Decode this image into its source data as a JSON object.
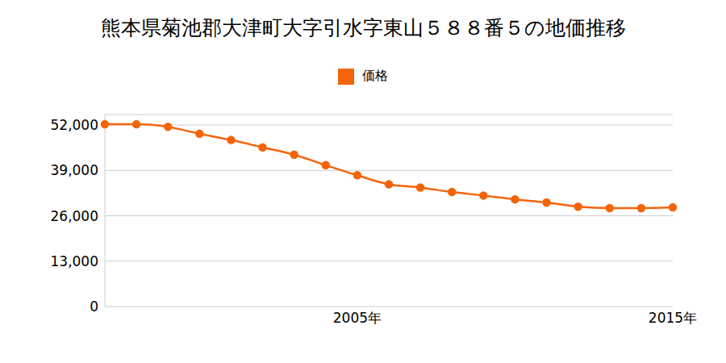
{
  "chart_data": {
    "type": "line",
    "title": "熊本県菊池郡大津町大字引水字東山５８８番５の地価推移",
    "categories": [
      null,
      null,
      null,
      null,
      null,
      null,
      null,
      null,
      "2005年",
      null,
      null,
      null,
      null,
      null,
      null,
      null,
      null,
      null,
      "2015年"
    ],
    "series": [
      {
        "name": "価格",
        "color": "#f5640a",
        "marker": "circle",
        "line_style": "solid",
        "values": [
          52200,
          52200,
          51500,
          49500,
          47700,
          45600,
          43500,
          40500,
          37600,
          35000,
          34100,
          32800,
          31800,
          30700,
          29800,
          28600,
          28200,
          28200,
          28400
        ]
      }
    ],
    "ylim": [
      0,
      55000
    ],
    "yticks": [
      0,
      {
        "value": 13000,
        "label": "13,000"
      },
      {
        "value": 26000,
        "label": "26,000"
      },
      {
        "value": 39000,
        "label": "39,000"
      },
      {
        "value": 52000,
        "label": "52,000"
      }
    ],
    "grid": true,
    "legend": "top"
  }
}
